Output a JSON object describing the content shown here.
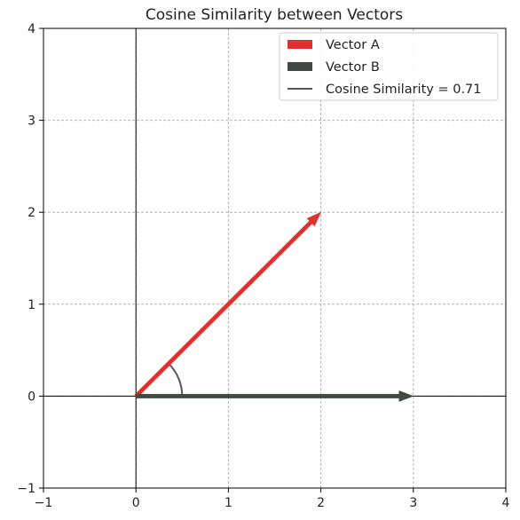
{
  "chart_data": {
    "type": "vector",
    "title": "Cosine Similarity between Vectors",
    "xlabel": "",
    "ylabel": "",
    "xlim": [
      -1,
      4
    ],
    "ylim": [
      -1,
      4
    ],
    "xticks": [
      "−1",
      "0",
      "1",
      "2",
      "3",
      "4"
    ],
    "yticks": [
      "−1",
      "0",
      "1",
      "2",
      "3",
      "4"
    ],
    "xtick_values": [
      -1,
      0,
      1,
      2,
      3,
      4
    ],
    "ytick_values": [
      -1,
      0,
      1,
      2,
      3,
      4
    ],
    "grid": true,
    "legend_position": "top-right",
    "vectors": [
      {
        "name": "Vector A",
        "origin": [
          0,
          0
        ],
        "end": [
          2,
          2
        ],
        "color": "#e03030"
      },
      {
        "name": "Vector B",
        "origin": [
          0,
          0
        ],
        "end": [
          3,
          0
        ],
        "color": "#404a40"
      }
    ],
    "angle_arc": {
      "name": "Cosine Similarity = 0.71",
      "value": 0.71,
      "radius": 0.5,
      "start_deg": 0,
      "end_deg": 45,
      "color": "#555555"
    }
  }
}
